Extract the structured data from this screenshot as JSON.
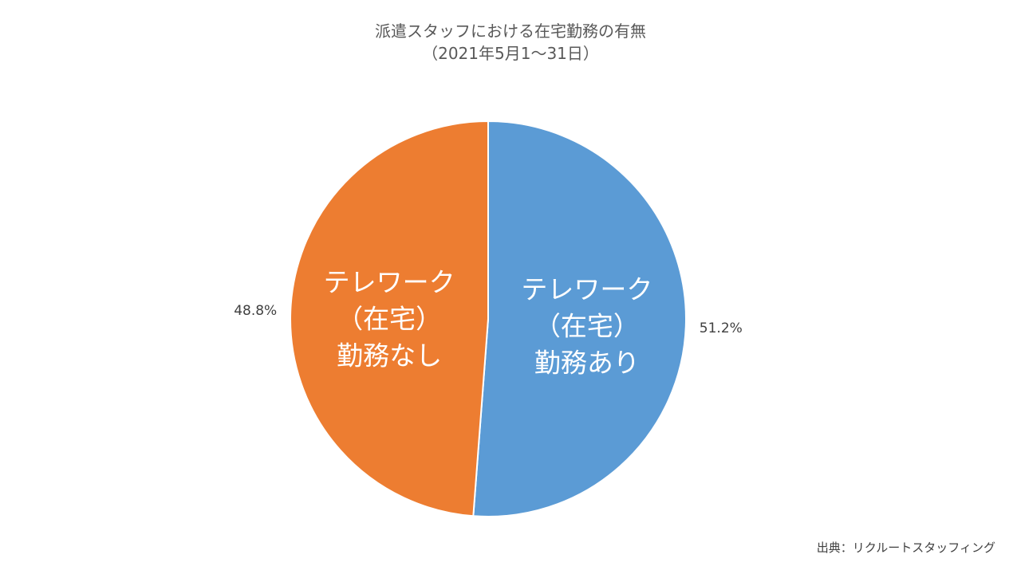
{
  "chart_data": {
    "type": "pie",
    "title": "派遣スタッフにおける在宅勤務の有無",
    "subtitle": "（2021年5月1～31日）",
    "slices": [
      {
        "label_lines": [
          "テレワーク",
          "（在宅）",
          "勤務あり"
        ],
        "value": 51.2,
        "value_label": "51.2%",
        "color": "#5B9BD5"
      },
      {
        "label_lines": [
          "テレワーク",
          "（在宅）",
          "勤務なし"
        ],
        "value": 48.8,
        "value_label": "48.8%",
        "color": "#ED7D31"
      }
    ],
    "start_angle_deg": 0,
    "direction": "clockwise",
    "source": "出典：リクルートスタッフィング"
  }
}
